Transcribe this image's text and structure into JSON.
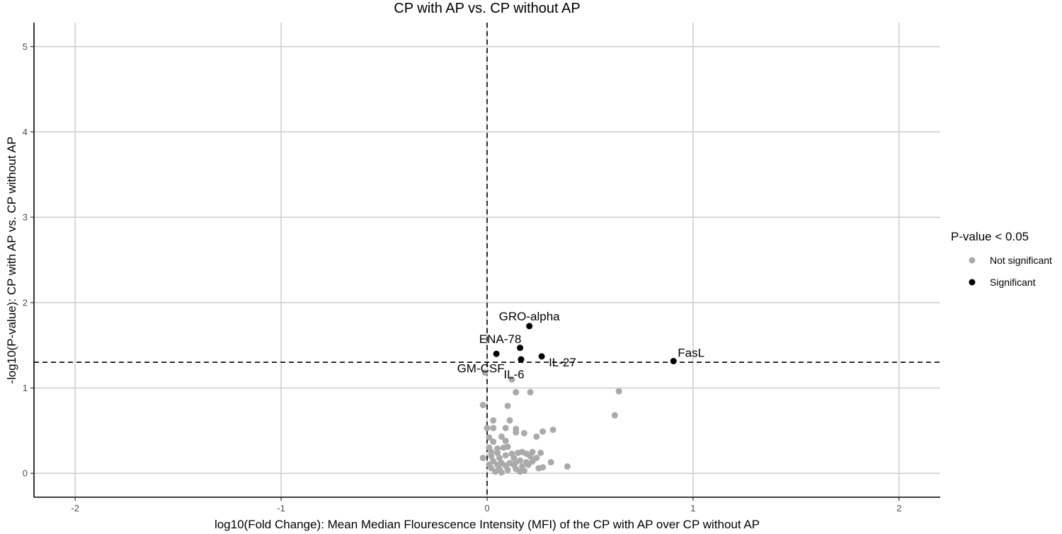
{
  "chart_data": {
    "type": "scatter",
    "title": "CP with AP vs. CP without AP",
    "xlabel": "log10(Fold Change): Mean Median Flourescence Intensity (MFI) of the CP with AP over CP without AP",
    "ylabel": "-log10(P-value): CP with AP vs. CP without AP",
    "xlim": [
      -2.2,
      2.2
    ],
    "ylim": [
      -0.28,
      5.28
    ],
    "x_ticks": [
      -2,
      -1,
      0,
      1,
      2
    ],
    "y_ticks": [
      0,
      1,
      2,
      3,
      4,
      5
    ],
    "grid": true,
    "reference_lines": {
      "vertical_x": 0,
      "horizontal_y": 1.30103
    },
    "legend": {
      "title": "P-value < 0.05",
      "placement": "right",
      "entries": [
        {
          "label": "Not significant",
          "color": "#aaaaaa"
        },
        {
          "label": "Significant",
          "color": "#000000"
        }
      ]
    },
    "series": [
      {
        "name": "Not significant",
        "color": "#aaaaaa",
        "points": [
          [
            -0.01,
            1.18
          ],
          [
            0.12,
            1.1
          ],
          [
            0.14,
            0.95
          ],
          [
            0.21,
            0.95
          ],
          [
            0.64,
            0.96
          ],
          [
            0.62,
            0.68
          ],
          [
            0.1,
            0.79
          ],
          [
            -0.02,
            0.8
          ],
          [
            0.03,
            0.62
          ],
          [
            0.11,
            0.62
          ],
          [
            0.0,
            0.53
          ],
          [
            0.03,
            0.53
          ],
          [
            0.09,
            0.53
          ],
          [
            0.14,
            0.52
          ],
          [
            0.14,
            0.48
          ],
          [
            0.18,
            0.47
          ],
          [
            0.24,
            0.43
          ],
          [
            0.27,
            0.49
          ],
          [
            0.32,
            0.51
          ],
          [
            0.01,
            0.42
          ],
          [
            0.07,
            0.43
          ],
          [
            0.03,
            0.37
          ],
          [
            0.09,
            0.38
          ],
          [
            0.01,
            0.3
          ],
          [
            0.05,
            0.29
          ],
          [
            0.08,
            0.3
          ],
          [
            0.1,
            0.31
          ],
          [
            0.02,
            0.25
          ],
          [
            0.05,
            0.24
          ],
          [
            0.12,
            0.23
          ],
          [
            0.15,
            0.24
          ],
          [
            0.17,
            0.25
          ],
          [
            0.19,
            0.23
          ],
          [
            0.22,
            0.25
          ],
          [
            0.26,
            0.24
          ],
          [
            0.02,
            0.2
          ],
          [
            0.06,
            0.18
          ],
          [
            0.09,
            0.21
          ],
          [
            0.13,
            0.18
          ],
          [
            0.21,
            0.2
          ],
          [
            0.24,
            0.18
          ],
          [
            -0.02,
            0.18
          ],
          [
            0.03,
            0.14
          ],
          [
            0.07,
            0.12
          ],
          [
            0.11,
            0.12
          ],
          [
            0.14,
            0.13
          ],
          [
            0.16,
            0.15
          ],
          [
            0.19,
            0.13
          ],
          [
            0.22,
            0.14
          ],
          [
            0.31,
            0.13
          ],
          [
            0.01,
            0.1
          ],
          [
            0.05,
            0.1
          ],
          [
            0.09,
            0.09
          ],
          [
            0.13,
            0.1
          ],
          [
            0.17,
            0.08
          ],
          [
            0.2,
            0.1
          ],
          [
            0.27,
            0.07
          ],
          [
            0.39,
            0.08
          ],
          [
            0.02,
            0.06
          ],
          [
            0.06,
            0.05
          ],
          [
            0.1,
            0.04
          ],
          [
            0.14,
            0.05
          ],
          [
            0.18,
            0.03
          ],
          [
            0.25,
            0.06
          ],
          [
            0.04,
            0.02
          ],
          [
            0.07,
            0.01
          ],
          [
            0.16,
            0.02
          ]
        ]
      },
      {
        "name": "Significant",
        "color": "#000000",
        "points": [
          [
            0.205,
            1.725
          ],
          [
            0.16,
            1.47
          ],
          [
            0.045,
            1.4
          ],
          [
            0.265,
            1.37
          ],
          [
            0.165,
            1.335
          ],
          [
            0.905,
            1.315
          ]
        ]
      }
    ],
    "point_labels": [
      {
        "text": "GRO-alpha",
        "x": 0.205,
        "y": 1.725
      },
      {
        "text": "ENA-78",
        "x": 0.16,
        "y": 1.47
      },
      {
        "text": "GM-CSF",
        "x": 0.045,
        "y": 1.4
      },
      {
        "text": "IL-27",
        "x": 0.265,
        "y": 1.37
      },
      {
        "text": "IL-6",
        "x": 0.165,
        "y": 1.335
      },
      {
        "text": "FasL",
        "x": 0.905,
        "y": 1.315
      }
    ]
  }
}
